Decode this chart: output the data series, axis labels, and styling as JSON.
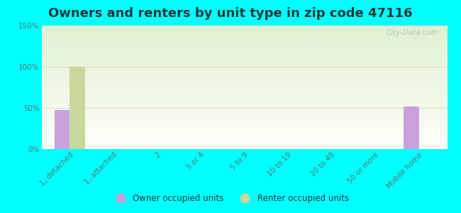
{
  "title": "Owners and renters by unit type in zip code 47116",
  "categories": [
    "1, detached",
    "1, attached",
    "2",
    "3 or 4",
    "5 to 9",
    "10 to 19",
    "20 to 49",
    "50 or more",
    "Mobile home"
  ],
  "owner_values": [
    47,
    0,
    0,
    0,
    0,
    0,
    0,
    0,
    52
  ],
  "renter_values": [
    100,
    0,
    0,
    0,
    0,
    0,
    0,
    0,
    0
  ],
  "owner_color": "#c9a0dc",
  "renter_color": "#c8d89a",
  "ylim": [
    0,
    150
  ],
  "yticks": [
    0,
    50,
    100,
    150
  ],
  "ytick_labels": [
    "0%",
    "50%",
    "100%",
    "150%"
  ],
  "background_color": "#00ffff",
  "bar_width": 0.35,
  "legend_owner": "Owner occupied units",
  "legend_renter": "Renter occupied units",
  "watermark": "City-Data.com",
  "title_fontsize": 13,
  "title_color": "#1a3a3a",
  "tick_color": "#557777",
  "grid_color": "#ddddcc"
}
